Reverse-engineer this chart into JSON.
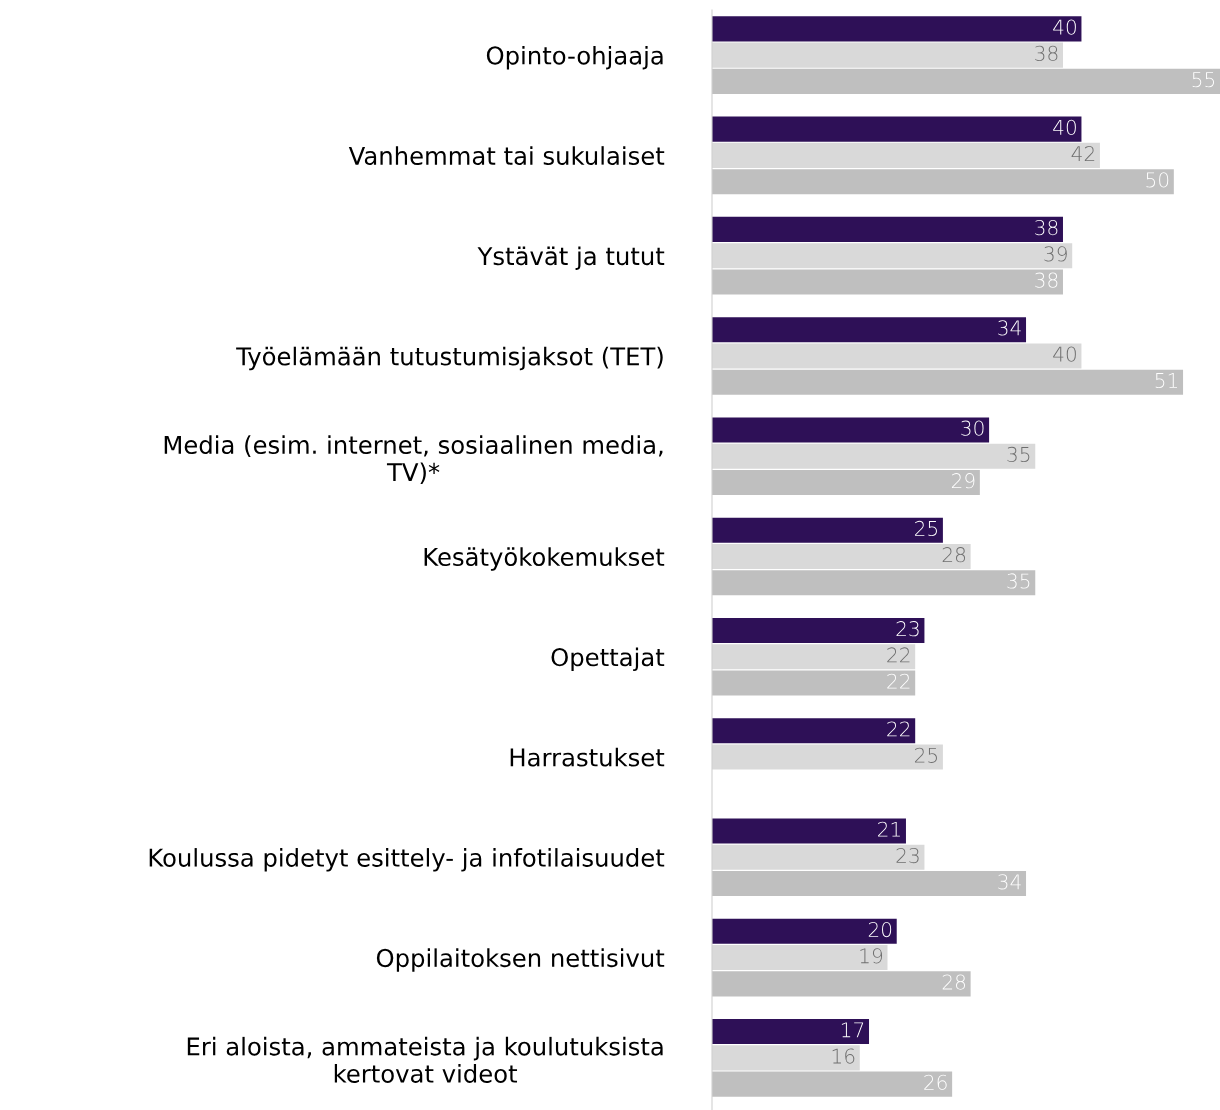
{
  "chart_data": {
    "type": "bar",
    "orientation": "horizontal",
    "data_labels": true,
    "grid": false,
    "legend": false,
    "tick_labels": "y",
    "categories": [
      "Opinto-ohjaaja",
      "Vanhemmat tai sukulaiset",
      "Ystävät ja tutut",
      "Työelämään tutustumisjaksot (TET)",
      "Media (esim. internet, sosiaalinen media,\nTV)*",
      "Kesätyökokemukset",
      "Opettajat",
      "Harrastukset",
      "Koulussa pidetyt esittely- ja infotilaisuudet",
      "Oppilaitoksen nettisivut",
      "Eri aloista, ammateista ja koulutuksista\nkertovat videot"
    ],
    "series": [
      {
        "color": "#2e1057",
        "values": [
          40,
          40,
          38,
          34,
          30,
          25,
          23,
          22,
          21,
          20,
          17
        ]
      },
      {
        "color": "#d9d9d9",
        "values": [
          38,
          42,
          39,
          40,
          35,
          28,
          22,
          25,
          23,
          19,
          16
        ]
      },
      {
        "color": "#bfbfbf",
        "values": [
          55,
          50,
          38,
          51,
          29,
          35,
          22,
          null,
          34,
          28,
          26
        ]
      }
    ]
  }
}
